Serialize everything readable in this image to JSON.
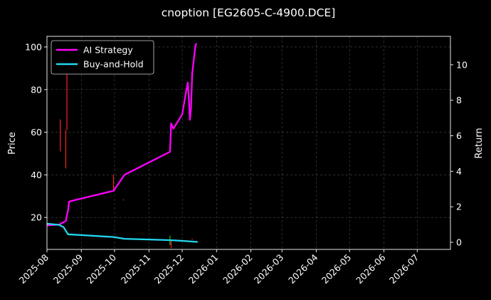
{
  "chart_data": {
    "type": "line",
    "title": "cnoption [EG2605-C-4900.DCE]",
    "ylabel_left": "Price",
    "ylabel_right": "Return",
    "grid": true,
    "legend_placement": "top-left",
    "x_ticks": [
      "2025-08",
      "2025-09",
      "2025-10",
      "2025-11",
      "2025-12",
      "2026-01",
      "2026-02",
      "2026-03",
      "2026-04",
      "2026-05",
      "2026-06",
      "2026-07"
    ],
    "xlim": [
      "2025-08-01",
      "2026-07-31"
    ],
    "ylim_left": [
      5,
      105
    ],
    "yticks_left": [
      20,
      40,
      60,
      80,
      100
    ],
    "ylim_right": [
      -0.4,
      11.6
    ],
    "yticks_right": [
      0,
      2,
      4,
      6,
      8,
      10
    ],
    "colors": {
      "ai": "#ff00ff",
      "bh": "#22d8ee",
      "up": "#00c800",
      "down": "#ff2020",
      "background": "#000000",
      "text": "#ffffff"
    },
    "series": [
      {
        "name": "AI Strategy",
        "axis": "right",
        "color": "#ff00ff",
        "points": [
          [
            "2025-08-01",
            0.95
          ],
          [
            "2025-08-12",
            1.0
          ],
          [
            "2025-08-18",
            1.2
          ],
          [
            "2025-08-20",
            1.8
          ],
          [
            "2025-08-21",
            2.3
          ],
          [
            "2025-09-30",
            2.9
          ],
          [
            "2025-10-10",
            3.8
          ],
          [
            "2025-11-20",
            5.1
          ],
          [
            "2025-11-21",
            6.7
          ],
          [
            "2025-11-23",
            6.4
          ],
          [
            "2025-11-25",
            6.6
          ],
          [
            "2025-12-01",
            7.2
          ],
          [
            "2025-12-06",
            9.0
          ],
          [
            "2025-12-07",
            8.1
          ],
          [
            "2025-12-08",
            6.9
          ],
          [
            "2025-12-09",
            7.6
          ],
          [
            "2025-12-10",
            9.5
          ],
          [
            "2025-12-13",
            11.1
          ],
          [
            "2025-12-14",
            11.2
          ]
        ]
      },
      {
        "name": "Buy-and-Hold",
        "axis": "right",
        "color": "#22d8ee",
        "points": [
          [
            "2025-08-01",
            1.05
          ],
          [
            "2025-08-12",
            0.98
          ],
          [
            "2025-08-16",
            0.85
          ],
          [
            "2025-08-19",
            0.55
          ],
          [
            "2025-08-20",
            0.45
          ],
          [
            "2025-09-30",
            0.3
          ],
          [
            "2025-10-10",
            0.2
          ],
          [
            "2025-11-20",
            0.12
          ],
          [
            "2025-12-01",
            0.08
          ],
          [
            "2025-12-15",
            0.02
          ]
        ]
      }
    ],
    "candles": [
      {
        "date": "2025-08-13",
        "high": 66,
        "low": 51,
        "dir": "down"
      },
      {
        "date": "2025-08-18",
        "high": 61,
        "low": 43,
        "dir": "down"
      },
      {
        "date": "2025-08-19",
        "high": 89,
        "low": 61,
        "dir": "down"
      },
      {
        "date": "2025-09-30",
        "high": 40,
        "low": 33,
        "dir": "down"
      },
      {
        "date": "2025-10-09",
        "high": 28.5,
        "low": 28,
        "dir": "down"
      },
      {
        "date": "2025-11-20",
        "high": 11.5,
        "low": 7,
        "dir": "up"
      },
      {
        "date": "2025-11-21",
        "high": 9,
        "low": 5.5,
        "dir": "down"
      },
      {
        "date": "2025-12-10",
        "high": 10,
        "low": 9.5,
        "dir": "down"
      }
    ]
  }
}
